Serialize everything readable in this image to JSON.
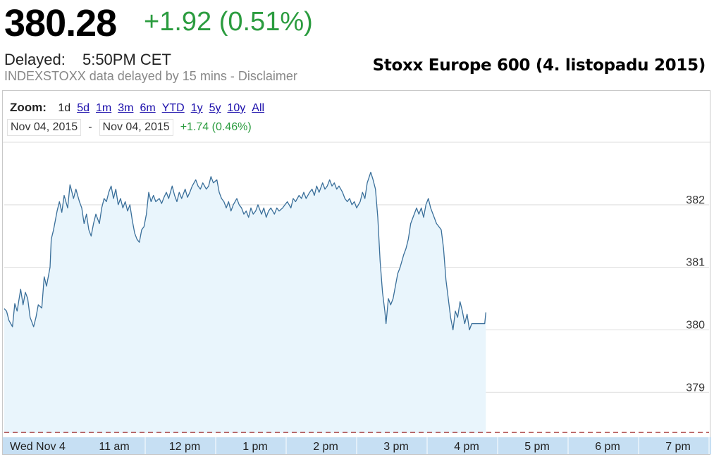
{
  "header": {
    "price": "380.28",
    "change": "+1.92 (0.51%)",
    "delayed_label": "Delayed:",
    "delayed_time": "5:50PM CET",
    "disclaimer": "INDEXSTOXX data delayed by 15 mins - Disclaimer",
    "overlay_title": "Stoxx Europe 600 (4. listopadu 2015)"
  },
  "zoom": {
    "label": "Zoom:",
    "options": [
      "1d",
      "5d",
      "1m",
      "3m",
      "6m",
      "YTD",
      "1y",
      "5y",
      "10y",
      "All"
    ],
    "active": "1d"
  },
  "range": {
    "from": "Nov 04, 2015",
    "separator": "-",
    "to": "Nov 04, 2015",
    "change": "+1.74 (0.46%)"
  },
  "colors": {
    "line": "#3a6f9a",
    "fill": "#e9f5fc",
    "grid": "#dddddd",
    "axis_band": "#c6dff3",
    "previous_close": "#a02828",
    "positive": "#2b9c3f"
  },
  "chart_data": {
    "type": "area",
    "x_unit": "time (CET)",
    "x_ticks": [
      {
        "label": "Wed Nov 4",
        "t": "09:00"
      },
      {
        "label": "11 am",
        "t": "11:00"
      },
      {
        "label": "12 pm",
        "t": "12:00"
      },
      {
        "label": "1 pm",
        "t": "13:00"
      },
      {
        "label": "2 pm",
        "t": "14:00"
      },
      {
        "label": "3 pm",
        "t": "15:00"
      },
      {
        "label": "4 pm",
        "t": "16:00"
      },
      {
        "label": "5 pm",
        "t": "17:00"
      },
      {
        "label": "6 pm",
        "t": "18:00"
      },
      {
        "label": "7 pm",
        "t": "19:00"
      }
    ],
    "y_ticks": [
      379,
      380,
      381,
      382
    ],
    "ylim": [
      378.35,
      383.0
    ],
    "previous_close": 378.36,
    "grid": true,
    "series": [
      {
        "points": [
          [
            "09:00",
            380.34
          ],
          [
            "09:02",
            380.3
          ],
          [
            "09:04",
            380.15
          ],
          [
            "09:07",
            380.05
          ],
          [
            "09:09",
            380.42
          ],
          [
            "09:11",
            380.3
          ],
          [
            "09:14",
            380.65
          ],
          [
            "09:16",
            380.4
          ],
          [
            "09:18",
            380.6
          ],
          [
            "09:20",
            380.5
          ],
          [
            "09:22",
            380.2
          ],
          [
            "09:25",
            380.05
          ],
          [
            "09:27",
            380.2
          ],
          [
            "09:29",
            380.4
          ],
          [
            "09:32",
            380.35
          ],
          [
            "09:34",
            380.85
          ],
          [
            "09:36",
            380.7
          ],
          [
            "09:39",
            381.0
          ],
          [
            "09:40",
            381.45
          ],
          [
            "09:42",
            381.6
          ],
          [
            "09:45",
            381.9
          ],
          [
            "09:47",
            382.05
          ],
          [
            "09:49",
            381.88
          ],
          [
            "09:51",
            382.15
          ],
          [
            "09:54",
            381.95
          ],
          [
            "09:56",
            382.32
          ],
          [
            "09:57",
            382.25
          ],
          [
            "09:59",
            382.1
          ],
          [
            "10:01",
            382.25
          ],
          [
            "10:04",
            382.05
          ],
          [
            "10:06",
            381.95
          ],
          [
            "10:08",
            381.7
          ],
          [
            "10:10",
            381.85
          ],
          [
            "10:12",
            381.6
          ],
          [
            "10:14",
            381.5
          ],
          [
            "10:16",
            381.7
          ],
          [
            "10:18",
            381.85
          ],
          [
            "10:21",
            381.7
          ],
          [
            "10:23",
            381.95
          ],
          [
            "10:25",
            382.1
          ],
          [
            "10:27",
            382.05
          ],
          [
            "10:29",
            382.2
          ],
          [
            "10:31",
            382.3
          ],
          [
            "10:33",
            382.1
          ],
          [
            "10:35",
            382.25
          ],
          [
            "10:37",
            382.0
          ],
          [
            "10:39",
            382.1
          ],
          [
            "10:41",
            381.95
          ],
          [
            "10:43",
            382.05
          ],
          [
            "10:45",
            381.9
          ],
          [
            "10:47",
            382.0
          ],
          [
            "10:49",
            381.75
          ],
          [
            "10:51",
            381.55
          ],
          [
            "10:53",
            381.45
          ],
          [
            "10:55",
            381.4
          ],
          [
            "10:57",
            381.6
          ],
          [
            "10:59",
            381.65
          ],
          [
            "11:01",
            381.85
          ],
          [
            "11:03",
            382.2
          ],
          [
            "11:05",
            382.05
          ],
          [
            "11:07",
            382.15
          ],
          [
            "11:09",
            382.05
          ],
          [
            "11:12",
            382.1
          ],
          [
            "11:14",
            382.02
          ],
          [
            "11:16",
            382.12
          ],
          [
            "11:18",
            382.2
          ],
          [
            "11:20",
            382.1
          ],
          [
            "11:23",
            382.3
          ],
          [
            "11:25",
            382.15
          ],
          [
            "11:27",
            382.05
          ],
          [
            "11:29",
            382.2
          ],
          [
            "11:31",
            382.1
          ],
          [
            "11:34",
            382.25
          ],
          [
            "11:36",
            382.12
          ],
          [
            "11:38",
            382.2
          ],
          [
            "11:40",
            382.3
          ],
          [
            "11:43",
            382.4
          ],
          [
            "11:45",
            382.3
          ],
          [
            "11:47",
            382.25
          ],
          [
            "11:49",
            382.35
          ],
          [
            "11:52",
            382.25
          ],
          [
            "11:54",
            382.3
          ],
          [
            "11:56",
            382.45
          ],
          [
            "11:58",
            382.35
          ],
          [
            "12:01",
            382.4
          ],
          [
            "12:03",
            382.2
          ],
          [
            "12:05",
            382.1
          ],
          [
            "12:07",
            382.05
          ],
          [
            "12:09",
            381.95
          ],
          [
            "12:11",
            382.05
          ],
          [
            "12:13",
            381.9
          ],
          [
            "12:15",
            382.0
          ],
          [
            "12:18",
            382.1
          ],
          [
            "12:20",
            382.0
          ],
          [
            "12:22",
            381.95
          ],
          [
            "12:24",
            381.85
          ],
          [
            "12:26",
            381.9
          ],
          [
            "12:28",
            381.8
          ],
          [
            "12:30",
            381.95
          ],
          [
            "12:32",
            381.85
          ],
          [
            "12:34",
            381.9
          ],
          [
            "12:36",
            382.0
          ],
          [
            "12:39",
            381.85
          ],
          [
            "12:41",
            381.95
          ],
          [
            "12:43",
            381.8
          ],
          [
            "12:45",
            381.9
          ],
          [
            "12:47",
            381.95
          ],
          [
            "12:50",
            381.85
          ],
          [
            "12:52",
            381.95
          ],
          [
            "12:54",
            381.9
          ],
          [
            "12:57",
            381.95
          ],
          [
            "12:59",
            382.0
          ],
          [
            "13:01",
            382.05
          ],
          [
            "13:04",
            381.95
          ],
          [
            "13:06",
            382.1
          ],
          [
            "13:08",
            382.05
          ],
          [
            "13:11",
            382.15
          ],
          [
            "13:13",
            382.1
          ],
          [
            "13:15",
            382.2
          ],
          [
            "13:17",
            382.1
          ],
          [
            "13:20",
            382.2
          ],
          [
            "13:22",
            382.25
          ],
          [
            "13:24",
            382.15
          ],
          [
            "13:26",
            382.3
          ],
          [
            "13:28",
            382.2
          ],
          [
            "13:31",
            382.35
          ],
          [
            "13:33",
            382.25
          ],
          [
            "13:35",
            382.3
          ],
          [
            "13:37",
            382.4
          ],
          [
            "13:39",
            382.3
          ],
          [
            "13:41",
            382.35
          ],
          [
            "13:43",
            382.25
          ],
          [
            "13:45",
            382.3
          ],
          [
            "13:48",
            382.2
          ],
          [
            "13:50",
            382.1
          ],
          [
            "13:52",
            382.05
          ],
          [
            "13:54",
            382.1
          ],
          [
            "13:56",
            382.0
          ],
          [
            "13:58",
            382.05
          ],
          [
            "14:00",
            381.95
          ],
          [
            "14:03",
            382.05
          ],
          [
            "14:05",
            382.2
          ],
          [
            "14:07",
            382.1
          ],
          [
            "14:09",
            382.35
          ],
          [
            "14:12",
            382.52
          ],
          [
            "14:14",
            382.4
          ],
          [
            "14:16",
            382.25
          ],
          [
            "14:18",
            381.8
          ],
          [
            "14:20",
            381.1
          ],
          [
            "14:22",
            380.6
          ],
          [
            "14:24",
            380.3
          ],
          [
            "14:25",
            380.1
          ],
          [
            "14:27",
            380.5
          ],
          [
            "14:29",
            380.4
          ],
          [
            "14:31",
            380.5
          ],
          [
            "14:33",
            380.7
          ],
          [
            "14:35",
            380.9
          ],
          [
            "14:37",
            381.0
          ],
          [
            "14:40",
            381.2
          ],
          [
            "14:42",
            381.3
          ],
          [
            "14:44",
            381.45
          ],
          [
            "14:46",
            381.7
          ],
          [
            "14:48",
            381.8
          ],
          [
            "14:51",
            381.95
          ],
          [
            "14:53",
            381.85
          ],
          [
            "14:55",
            381.95
          ],
          [
            "14:57",
            381.8
          ],
          [
            "14:59",
            382.0
          ],
          [
            "15:01",
            382.1
          ],
          [
            "15:03",
            381.95
          ],
          [
            "15:06",
            381.8
          ],
          [
            "15:08",
            381.7
          ],
          [
            "15:10",
            381.65
          ],
          [
            "15:12",
            381.6
          ],
          [
            "15:14",
            381.3
          ],
          [
            "15:16",
            380.8
          ],
          [
            "15:18",
            380.5
          ],
          [
            "15:20",
            380.2
          ],
          [
            "15:22",
            380.0
          ],
          [
            "15:24",
            380.3
          ],
          [
            "15:26",
            380.2
          ],
          [
            "15:28",
            380.45
          ],
          [
            "15:30",
            380.3
          ],
          [
            "15:32",
            380.1
          ],
          [
            "15:34",
            380.25
          ],
          [
            "15:36",
            380.0
          ],
          [
            "15:38",
            380.1
          ],
          [
            "15:41",
            380.1
          ],
          [
            "15:45",
            380.1
          ],
          [
            "15:49",
            380.1
          ],
          [
            "15:50",
            380.28
          ]
        ]
      }
    ]
  }
}
